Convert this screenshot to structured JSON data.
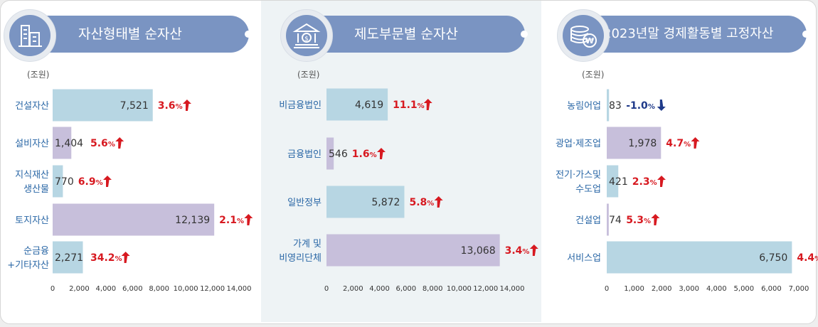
{
  "colors": {
    "bar_blue": "#b7d6e3",
    "bar_purple": "#c7bfdb",
    "category_text": "#2a67a6",
    "increase": "#d71920",
    "decrease": "#1f3a8a",
    "banner": "#7a94c2"
  },
  "panels": [
    {
      "title": "자산형태별 순자산",
      "icon": "buildings-icon",
      "unit": "(조원)"
    },
    {
      "title": "제도부문별 순자산",
      "icon": "bank-icon",
      "unit": "(조원)"
    },
    {
      "title": "2023년말 경제활동별 고정자산",
      "icon": "coins-won-icon",
      "unit": "(조원)"
    }
  ],
  "chart_data": [
    {
      "type": "bar",
      "orientation": "horizontal",
      "title": "자산형태별 순자산",
      "unit": "(조원)",
      "categories": [
        [
          "건설자산"
        ],
        [
          "설비자산"
        ],
        [
          "지식재산",
          "생산물"
        ],
        [
          "토지자산"
        ],
        [
          "순금융",
          "+기타자산"
        ]
      ],
      "values": [
        7521,
        1404,
        770,
        12139,
        2271
      ],
      "value_labels": [
        "7,521",
        "1,404",
        "770",
        "12,139",
        "2,271"
      ],
      "change_labels": [
        "3.6",
        "5.6",
        "6.9",
        "2.1",
        "34.2"
      ],
      "change_unit": "%",
      "change_direction": [
        "up",
        "up",
        "up",
        "up",
        "up"
      ],
      "bar_colors": [
        "blue",
        "purple",
        "blue",
        "purple",
        "blue"
      ],
      "xlim": [
        0,
        14000
      ],
      "xticks": [
        "0",
        "2,000",
        "4,000",
        "6,000",
        "8,000",
        "10,000",
        "12,000",
        "14,000"
      ]
    },
    {
      "type": "bar",
      "orientation": "horizontal",
      "title": "제도부문별 순자산",
      "unit": "(조원)",
      "categories": [
        [
          "비금융법인"
        ],
        [
          "금융법인"
        ],
        [
          "일반정부"
        ],
        [
          "가계 및",
          "비영리단체"
        ]
      ],
      "values": [
        4619,
        546,
        5872,
        13068
      ],
      "value_labels": [
        "4,619",
        "546",
        "5,872",
        "13,068"
      ],
      "change_labels": [
        "11.1",
        "1.6",
        "5.8",
        "3.4"
      ],
      "change_unit": "%",
      "change_direction": [
        "up",
        "up",
        "up",
        "up"
      ],
      "bar_colors": [
        "blue",
        "purple",
        "blue",
        "purple"
      ],
      "xlim": [
        0,
        14000
      ],
      "xticks": [
        "0",
        "2,000",
        "4,000",
        "6,000",
        "8,000",
        "10,000",
        "12,000",
        "14,000"
      ]
    },
    {
      "type": "bar",
      "orientation": "horizontal",
      "title": "2023년말 경제활동별 고정자산",
      "unit": "(조원)",
      "categories": [
        [
          "농림어업"
        ],
        [
          "광업·제조업"
        ],
        [
          "전기·가스및",
          "수도업"
        ],
        [
          "건설업"
        ],
        [
          "서비스업"
        ]
      ],
      "values": [
        83,
        1978,
        421,
        74,
        6750
      ],
      "value_labels": [
        "83",
        "1,978",
        "421",
        "74",
        "6,750"
      ],
      "change_labels": [
        "-1.0",
        "4.7",
        "2.3",
        "5.3",
        "4.4"
      ],
      "change_unit": "%",
      "change_direction": [
        "down",
        "up",
        "up",
        "up",
        "up"
      ],
      "bar_colors": [
        "blue",
        "purple",
        "blue",
        "purple",
        "blue"
      ],
      "xlim": [
        0,
        7000
      ],
      "xticks": [
        "0",
        "1,000",
        "2,000",
        "3,000",
        "4,000",
        "5,000",
        "6,000",
        "7,000"
      ]
    }
  ]
}
